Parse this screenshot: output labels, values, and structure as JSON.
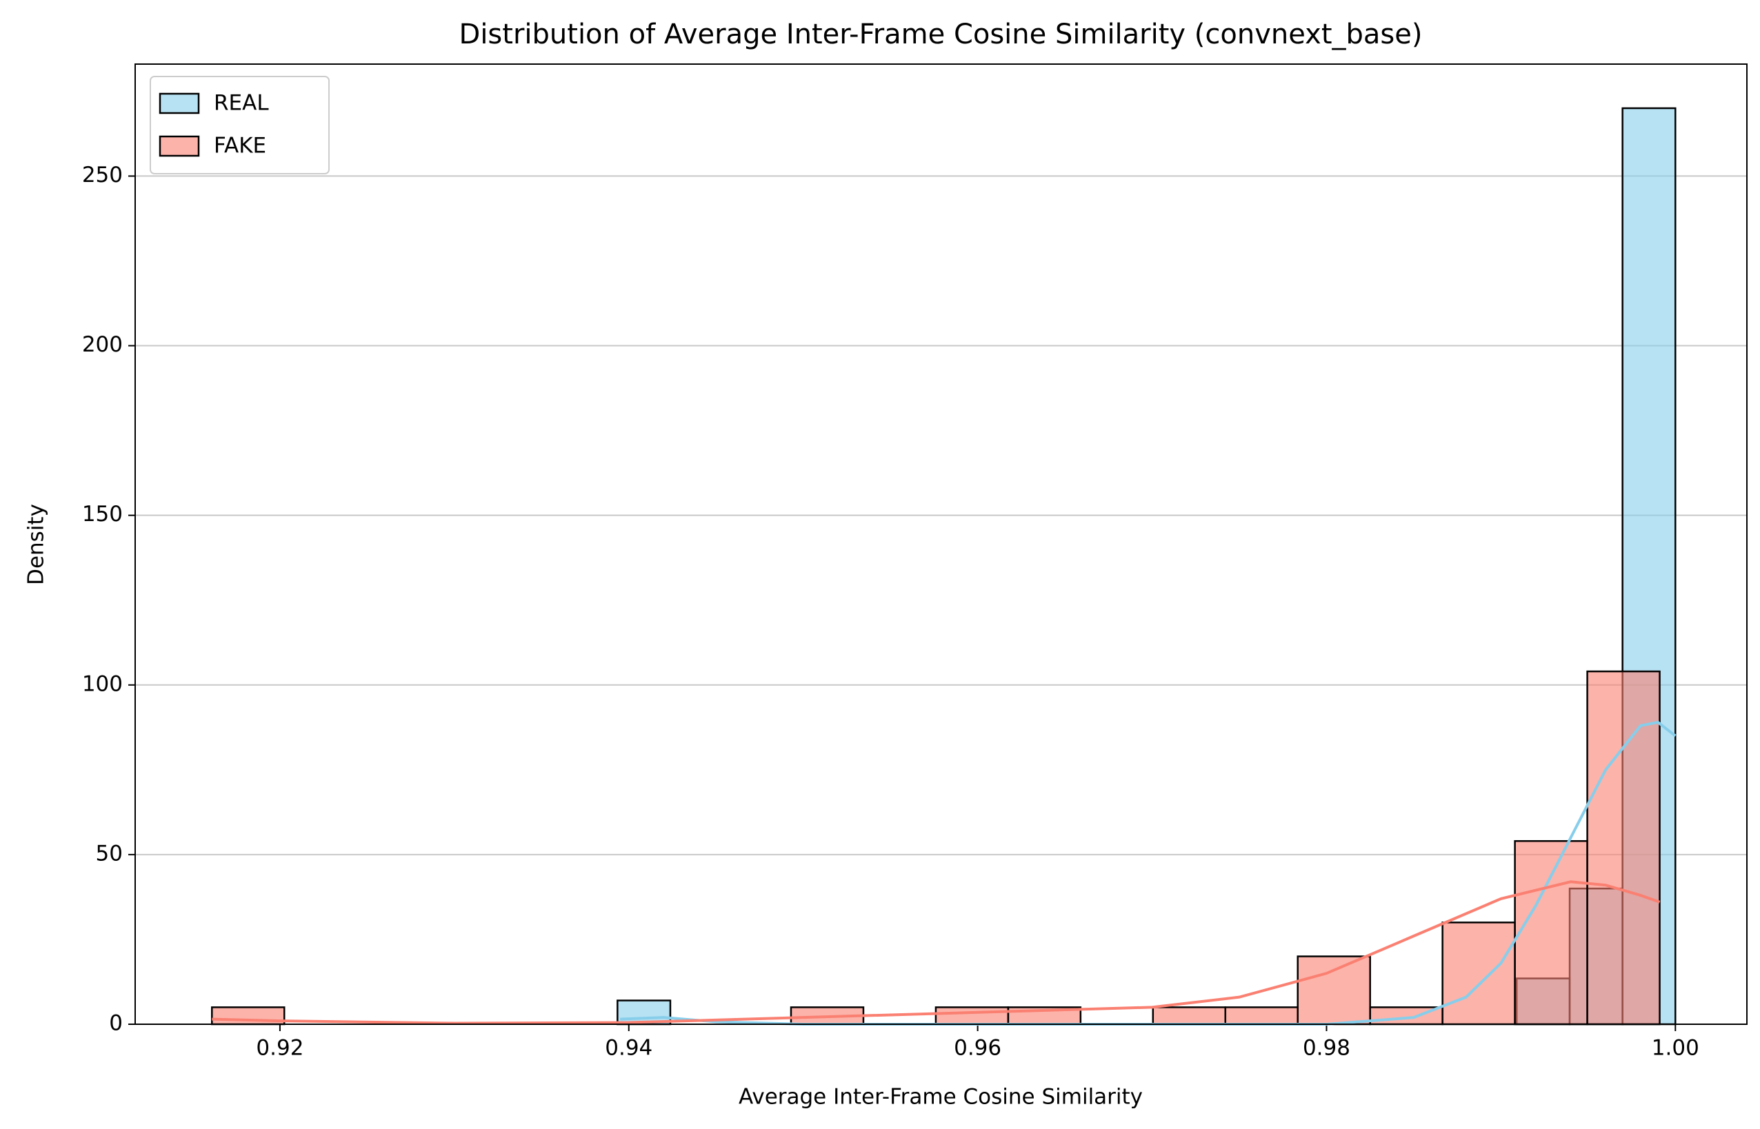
{
  "chart_data": {
    "type": "histogram",
    "title": "Distribution of Average Inter-Frame Cosine Similarity (convnext_base)",
    "xlabel": "Average Inter-Frame Cosine Similarity",
    "ylabel": "Density",
    "xlim": [
      0.9117,
      1.0041
    ],
    "ylim": [
      0,
      283
    ],
    "xticks": [
      0.92,
      0.94,
      0.96,
      0.98,
      {
        "value": 1,
        "label": "1.00"
      }
    ],
    "yticks": [
      0,
      50,
      100,
      150,
      200,
      250
    ],
    "grid": "y",
    "legend": "upper left",
    "series": [
      {
        "name": "REAL",
        "color": "#87ceeb",
        "opacity": 0.6,
        "bins": [
          0.93935,
          0.94238,
          0.94542,
          0.94845,
          0.95148,
          0.95452,
          0.95755,
          0.96058,
          0.96361,
          0.96665,
          0.96968,
          0.97271,
          0.97574,
          0.97877,
          0.98181,
          0.98484,
          0.98787,
          0.9909,
          0.99394,
          0.99697,
          1.0
        ],
        "values": [
          7,
          0,
          0,
          0,
          0,
          0,
          0,
          0,
          0,
          0,
          0,
          0,
          0,
          0,
          0,
          0,
          0,
          13.5,
          40,
          270
        ],
        "kde": {
          "x": [
            0.9395,
            0.942,
            0.945,
            0.95,
            0.98,
            0.985,
            0.988,
            0.99,
            0.992,
            0.994,
            0.996,
            0.998,
            0.999,
            1.0
          ],
          "values": [
            1.5,
            2,
            0.7,
            0,
            0,
            2,
            8,
            18,
            35,
            55,
            75,
            88,
            89,
            85
          ]
        }
      },
      {
        "name": "FAKE",
        "color": "#fa8072",
        "opacity": 0.6,
        "bins": [
          0.9161,
          0.92025,
          0.9244,
          0.92855,
          0.9327,
          0.93685,
          0.941,
          0.94515,
          0.9493,
          0.95345,
          0.9576,
          0.96175,
          0.9659,
          0.97005,
          0.9742,
          0.97835,
          0.9825,
          0.98665,
          0.9908,
          0.99495,
          0.9991
        ],
        "values": [
          5,
          0,
          0,
          0,
          0,
          0,
          0,
          0,
          5,
          0,
          5,
          5,
          0,
          5,
          5,
          20,
          5,
          30,
          54,
          104
        ],
        "kde": {
          "x": [
            0.9161,
            0.92,
            0.93,
            0.94,
            0.95,
            0.96,
            0.97,
            0.975,
            0.98,
            0.985,
            0.99,
            0.994,
            0.996,
            0.998,
            0.9991
          ],
          "values": [
            1.5,
            1,
            0.3,
            0.5,
            2,
            3.5,
            5,
            8,
            15,
            26,
            37,
            42,
            41,
            38,
            36
          ]
        }
      }
    ]
  }
}
